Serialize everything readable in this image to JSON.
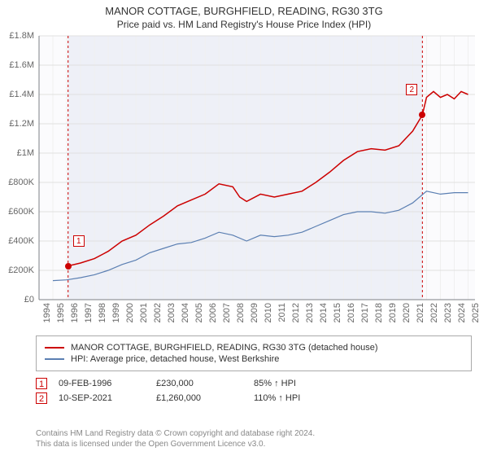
{
  "title": "MANOR COTTAGE, BURGHFIELD, READING, RG30 3TG",
  "subtitle": "Price paid vs. HM Land Registry's House Price Index (HPI)",
  "chart": {
    "type": "line",
    "background_color": "#ffffff",
    "plot_background_color": "#fbfbfd",
    "shaded_region_color": "#eef0f7",
    "grid_color": "#e0e0e0",
    "minor_grid_color": "#f0f0f0",
    "axis_color": "#7e8186",
    "label_color": "#666666",
    "label_fontsize": 11,
    "title_fontsize": 13,
    "subtitle_fontsize": 12,
    "y": {
      "min": 0,
      "max": 1800000,
      "step": 200000,
      "format_prefix": "£",
      "format_suffix": "",
      "ticks": [
        {
          "v": 0,
          "label": "£0"
        },
        {
          "v": 200000,
          "label": "£200K"
        },
        {
          "v": 400000,
          "label": "£400K"
        },
        {
          "v": 600000,
          "label": "£600K"
        },
        {
          "v": 800000,
          "label": "£800K"
        },
        {
          "v": 1000000,
          "label": "£1M"
        },
        {
          "v": 1200000,
          "label": "£1.2M"
        },
        {
          "v": 1400000,
          "label": "£1.4M"
        },
        {
          "v": 1600000,
          "label": "£1.6M"
        },
        {
          "v": 1800000,
          "label": "£1.8M"
        }
      ]
    },
    "x": {
      "min": 1994,
      "max": 2025.5,
      "step": 1,
      "ticks": [
        1994,
        1995,
        1996,
        1997,
        1998,
        1999,
        2000,
        2001,
        2002,
        2003,
        2004,
        2005,
        2006,
        2007,
        2008,
        2009,
        2010,
        2011,
        2012,
        2013,
        2014,
        2015,
        2016,
        2017,
        2018,
        2019,
        2020,
        2021,
        2022,
        2023,
        2024,
        2025
      ]
    },
    "shaded_region": {
      "x_start": 1996.1,
      "x_end": 2021.7
    },
    "series": [
      {
        "name": "red",
        "color": "#cc0000",
        "line_width": 1.5,
        "data": [
          [
            1996.1,
            230000
          ],
          [
            1997,
            250000
          ],
          [
            1998,
            280000
          ],
          [
            1999,
            330000
          ],
          [
            2000,
            400000
          ],
          [
            2001,
            440000
          ],
          [
            2002,
            510000
          ],
          [
            2003,
            570000
          ],
          [
            2004,
            640000
          ],
          [
            2005,
            680000
          ],
          [
            2006,
            720000
          ],
          [
            2007,
            790000
          ],
          [
            2008,
            770000
          ],
          [
            2008.5,
            700000
          ],
          [
            2009,
            670000
          ],
          [
            2010,
            720000
          ],
          [
            2011,
            700000
          ],
          [
            2012,
            720000
          ],
          [
            2013,
            740000
          ],
          [
            2014,
            800000
          ],
          [
            2015,
            870000
          ],
          [
            2016,
            950000
          ],
          [
            2017,
            1010000
          ],
          [
            2018,
            1030000
          ],
          [
            2019,
            1020000
          ],
          [
            2020,
            1050000
          ],
          [
            2021,
            1150000
          ],
          [
            2021.7,
            1260000
          ],
          [
            2022,
            1380000
          ],
          [
            2022.5,
            1420000
          ],
          [
            2023,
            1380000
          ],
          [
            2023.5,
            1400000
          ],
          [
            2024,
            1370000
          ],
          [
            2024.5,
            1420000
          ],
          [
            2025,
            1400000
          ]
        ]
      },
      {
        "name": "blue",
        "color": "#5b7fb2",
        "line_width": 1.2,
        "data": [
          [
            1995,
            130000
          ],
          [
            1996,
            135000
          ],
          [
            1997,
            150000
          ],
          [
            1998,
            170000
          ],
          [
            1999,
            200000
          ],
          [
            2000,
            240000
          ],
          [
            2001,
            270000
          ],
          [
            2002,
            320000
          ],
          [
            2003,
            350000
          ],
          [
            2004,
            380000
          ],
          [
            2005,
            390000
          ],
          [
            2006,
            420000
          ],
          [
            2007,
            460000
          ],
          [
            2008,
            440000
          ],
          [
            2009,
            400000
          ],
          [
            2010,
            440000
          ],
          [
            2011,
            430000
          ],
          [
            2012,
            440000
          ],
          [
            2013,
            460000
          ],
          [
            2014,
            500000
          ],
          [
            2015,
            540000
          ],
          [
            2016,
            580000
          ],
          [
            2017,
            600000
          ],
          [
            2018,
            600000
          ],
          [
            2019,
            590000
          ],
          [
            2020,
            610000
          ],
          [
            2021,
            660000
          ],
          [
            2022,
            740000
          ],
          [
            2023,
            720000
          ],
          [
            2024,
            730000
          ],
          [
            2025,
            730000
          ]
        ]
      }
    ],
    "markers": [
      {
        "idx": "1",
        "x": 1996.1,
        "y": 230000,
        "dot_color": "#cc0000",
        "box_offset_y": -38
      },
      {
        "idx": "2",
        "x": 2021.7,
        "y": 1260000,
        "dot_color": "#cc0000",
        "box_offset_y": -38
      }
    ]
  },
  "legend": {
    "border_color": "#aaaaaa",
    "items": [
      {
        "color": "#cc0000",
        "label": "MANOR COTTAGE, BURGHFIELD, READING, RG30 3TG (detached house)"
      },
      {
        "color": "#5b7fb2",
        "label": "HPI: Average price, detached house, West Berkshire"
      }
    ]
  },
  "sales": [
    {
      "idx": "1",
      "date": "09-FEB-1996",
      "price": "£230,000",
      "pct": "85% ↑ HPI"
    },
    {
      "idx": "2",
      "date": "10-SEP-2021",
      "price": "£1,260,000",
      "pct": "110% ↑ HPI"
    }
  ],
  "footer": {
    "line1": "Contains HM Land Registry data © Crown copyright and database right 2024.",
    "line2": "This data is licensed under the Open Government Licence v3.0."
  }
}
